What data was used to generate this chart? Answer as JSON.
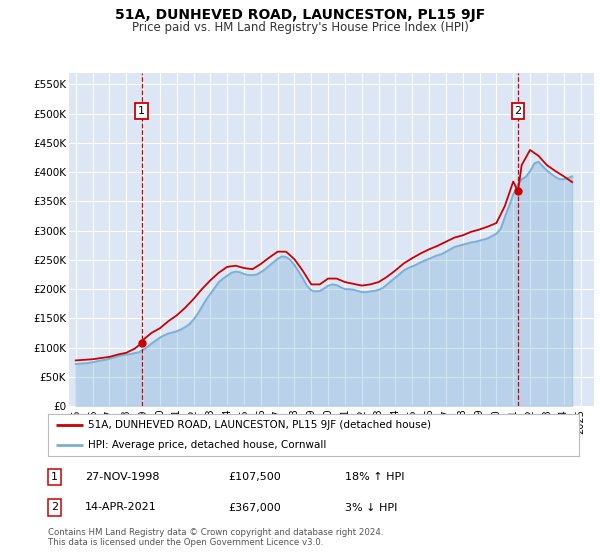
{
  "title": "51A, DUNHEVED ROAD, LAUNCESTON, PL15 9JF",
  "subtitle": "Price paid vs. HM Land Registry's House Price Index (HPI)",
  "ylim": [
    0,
    570000
  ],
  "yticks": [
    0,
    50000,
    100000,
    150000,
    200000,
    250000,
    300000,
    350000,
    400000,
    450000,
    500000,
    550000
  ],
  "ytick_labels": [
    "£0",
    "£50K",
    "£100K",
    "£150K",
    "£200K",
    "£250K",
    "£300K",
    "£350K",
    "£400K",
    "£450K",
    "£500K",
    "£550K"
  ],
  "xlim_start": 1994.6,
  "xlim_end": 2025.8,
  "plot_bg_color": "#dce6f5",
  "grid_color": "#ffffff",
  "red_line_color": "#cc0000",
  "blue_line_color": "#7bafd4",
  "sale1_x": 1998.91,
  "sale1_y": 107500,
  "sale1_label": "1",
  "sale2_x": 2021.28,
  "sale2_y": 367000,
  "sale2_label": "2",
  "annotation_box_color": "#cc0000",
  "legend_label_red": "51A, DUNHEVED ROAD, LAUNCESTON, PL15 9JF (detached house)",
  "legend_label_blue": "HPI: Average price, detached house, Cornwall",
  "table_row1": [
    "1",
    "27-NOV-1998",
    "£107,500",
    "18% ↑ HPI"
  ],
  "table_row2": [
    "2",
    "14-APR-2021",
    "£367,000",
    "3% ↓ HPI"
  ],
  "footer": "Contains HM Land Registry data © Crown copyright and database right 2024.\nThis data is licensed under the Open Government Licence v3.0.",
  "hpi_years": [
    1995.0,
    1995.25,
    1995.5,
    1995.75,
    1996.0,
    1996.25,
    1996.5,
    1996.75,
    1997.0,
    1997.25,
    1997.5,
    1997.75,
    1998.0,
    1998.25,
    1998.5,
    1998.75,
    1999.0,
    1999.25,
    1999.5,
    1999.75,
    2000.0,
    2000.25,
    2000.5,
    2000.75,
    2001.0,
    2001.25,
    2001.5,
    2001.75,
    2002.0,
    2002.25,
    2002.5,
    2002.75,
    2003.0,
    2003.25,
    2003.5,
    2003.75,
    2004.0,
    2004.25,
    2004.5,
    2004.75,
    2005.0,
    2005.25,
    2005.5,
    2005.75,
    2006.0,
    2006.25,
    2006.5,
    2006.75,
    2007.0,
    2007.25,
    2007.5,
    2007.75,
    2008.0,
    2008.25,
    2008.5,
    2008.75,
    2009.0,
    2009.25,
    2009.5,
    2009.75,
    2010.0,
    2010.25,
    2010.5,
    2010.75,
    2011.0,
    2011.25,
    2011.5,
    2011.75,
    2012.0,
    2012.25,
    2012.5,
    2012.75,
    2013.0,
    2013.25,
    2013.5,
    2013.75,
    2014.0,
    2014.25,
    2014.5,
    2014.75,
    2015.0,
    2015.25,
    2015.5,
    2015.75,
    2016.0,
    2016.25,
    2016.5,
    2016.75,
    2017.0,
    2017.25,
    2017.5,
    2017.75,
    2018.0,
    2018.25,
    2018.5,
    2018.75,
    2019.0,
    2019.25,
    2019.5,
    2019.75,
    2020.0,
    2020.25,
    2020.5,
    2020.75,
    2021.0,
    2021.25,
    2021.5,
    2021.75,
    2022.0,
    2022.25,
    2022.5,
    2022.75,
    2023.0,
    2023.25,
    2023.5,
    2023.75,
    2024.0,
    2024.25,
    2024.5
  ],
  "hpi_values": [
    72000,
    72500,
    73000,
    73500,
    75000,
    76500,
    78000,
    79000,
    81000,
    83000,
    85000,
    87000,
    88000,
    89000,
    90500,
    92000,
    96000,
    101000,
    107000,
    112000,
    117000,
    121000,
    124000,
    126000,
    128000,
    131000,
    135000,
    140000,
    148000,
    158000,
    170000,
    182000,
    192000,
    202000,
    212000,
    218000,
    223000,
    228000,
    230000,
    229000,
    226000,
    224000,
    224000,
    225000,
    229000,
    234000,
    240000,
    246000,
    252000,
    256000,
    255000,
    250000,
    241000,
    230000,
    218000,
    205000,
    198000,
    196000,
    197000,
    201000,
    206000,
    208000,
    207000,
    203000,
    200000,
    200000,
    199000,
    197000,
    195000,
    195000,
    196000,
    197000,
    199000,
    202000,
    208000,
    214000,
    220000,
    226000,
    232000,
    236000,
    239000,
    242000,
    246000,
    249000,
    252000,
    255000,
    258000,
    260000,
    264000,
    268000,
    272000,
    274000,
    276000,
    278000,
    280000,
    281000,
    283000,
    285000,
    287000,
    291000,
    295000,
    303000,
    323000,
    342000,
    362000,
    378000,
    388000,
    392000,
    402000,
    415000,
    418000,
    410000,
    403000,
    397000,
    392000,
    388000,
    388000,
    390000,
    393000
  ],
  "red_line_years": [
    1995.0,
    1995.5,
    1996.0,
    1996.5,
    1997.0,
    1997.5,
    1998.0,
    1998.5,
    1998.91,
    1999.0,
    1999.5,
    2000.0,
    2000.5,
    2001.0,
    2001.5,
    2002.0,
    2002.5,
    2003.0,
    2003.5,
    2004.0,
    2004.5,
    2005.0,
    2005.5,
    2006.0,
    2006.5,
    2007.0,
    2007.5,
    2008.0,
    2008.5,
    2009.0,
    2009.5,
    2010.0,
    2010.5,
    2011.0,
    2011.5,
    2012.0,
    2012.5,
    2013.0,
    2013.5,
    2014.0,
    2014.5,
    2015.0,
    2015.5,
    2016.0,
    2016.5,
    2017.0,
    2017.5,
    2018.0,
    2018.5,
    2019.0,
    2019.5,
    2020.0,
    2020.5,
    2021.0,
    2021.28,
    2021.5,
    2022.0,
    2022.5,
    2023.0,
    2023.5,
    2024.0,
    2024.5
  ],
  "red_line_values": [
    78000,
    79000,
    80000,
    82000,
    84000,
    88000,
    91000,
    98000,
    107500,
    113000,
    125000,
    133000,
    145000,
    155000,
    168000,
    183000,
    200000,
    215000,
    228000,
    238000,
    240000,
    236000,
    234000,
    243000,
    254000,
    264000,
    264000,
    251000,
    231000,
    208000,
    208000,
    218000,
    218000,
    212000,
    209000,
    206000,
    208000,
    212000,
    221000,
    232000,
    244000,
    253000,
    261000,
    268000,
    274000,
    281000,
    288000,
    292000,
    298000,
    302000,
    307000,
    313000,
    342000,
    384000,
    367000,
    412000,
    438000,
    428000,
    412000,
    402000,
    393000,
    383000
  ]
}
